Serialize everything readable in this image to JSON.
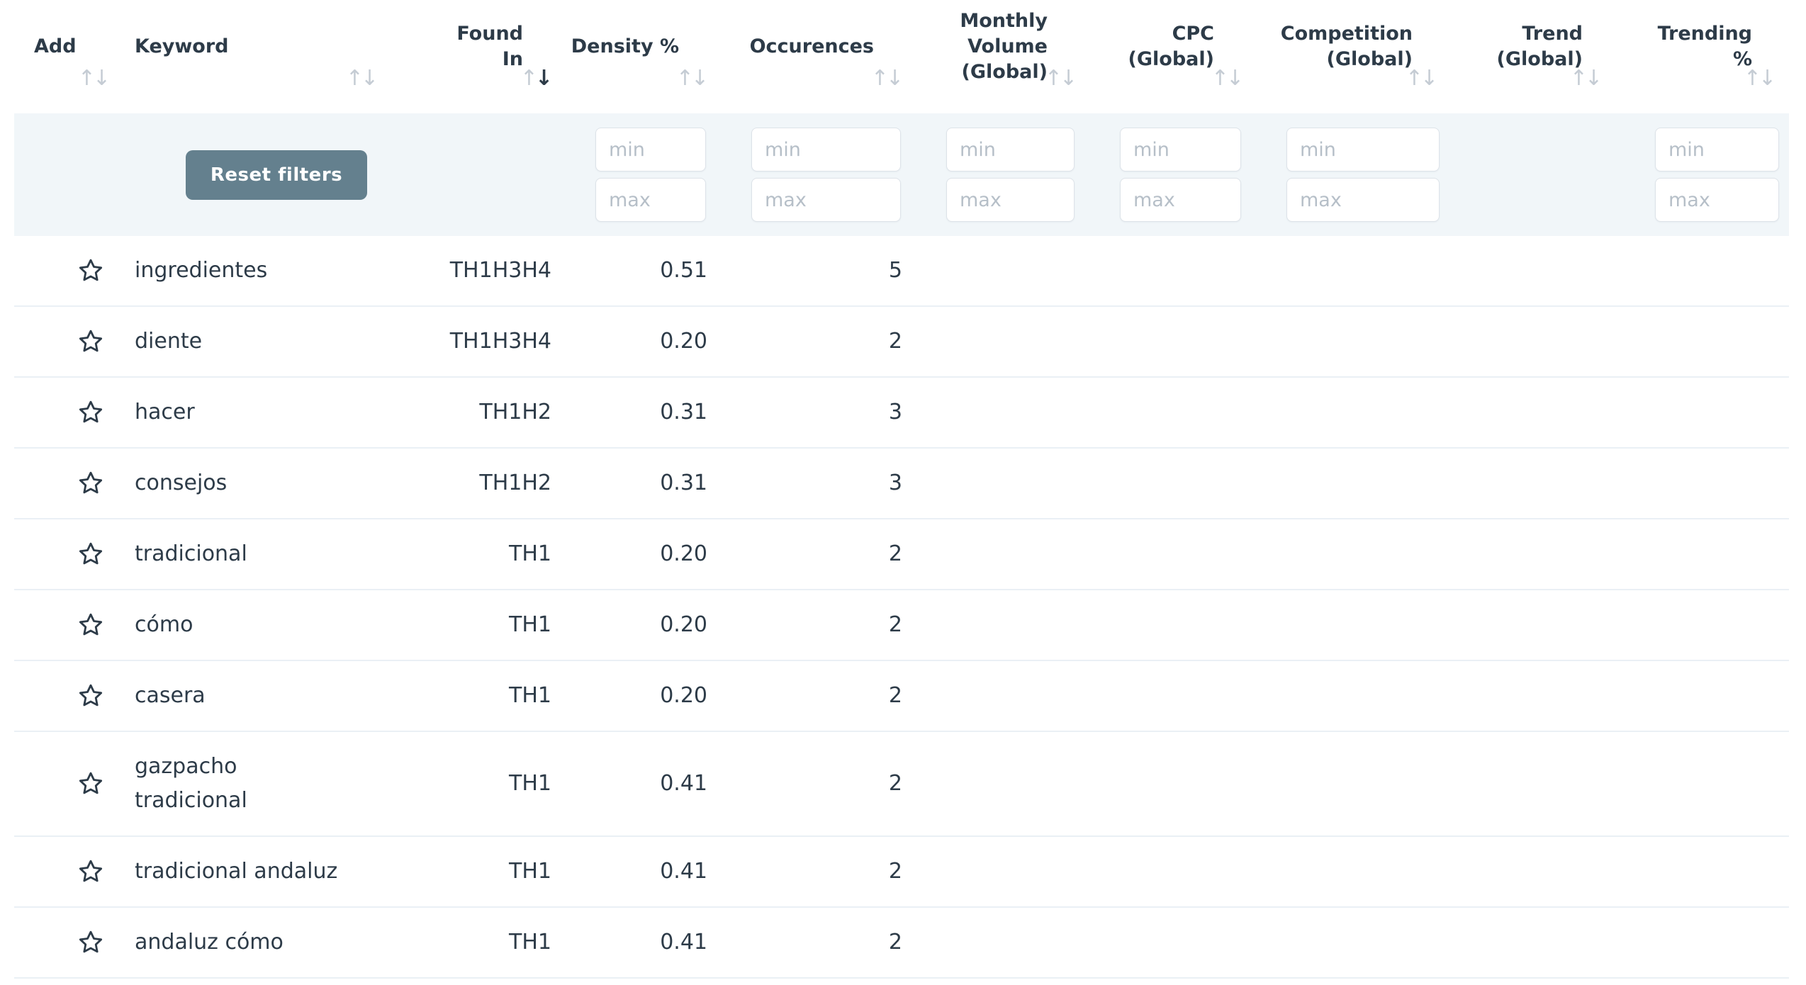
{
  "icons": {
    "sort_asc": "↑",
    "sort_desc": "↓",
    "favorite_star": "star-outline-icon"
  },
  "colors": {
    "text": "#2d3b48",
    "sort_arrow_inactive": "#c5ccd4",
    "sort_arrow_active": "#2d3b48",
    "filter_row_background": "#f1f6f9",
    "reset_button": "#64808e",
    "row_divider": "#eaf0f5"
  },
  "filters": {
    "reset_label": "Reset filters",
    "min_placeholder": "min",
    "max_placeholder": "max",
    "range_filter_columns": [
      "density",
      "occurences",
      "monthly_volume",
      "cpc",
      "competition",
      "trending"
    ]
  },
  "table": {
    "columns": [
      {
        "key": "add",
        "label": "Add",
        "sort": "none"
      },
      {
        "key": "keyword",
        "label": "Keyword",
        "sort": "none"
      },
      {
        "key": "found_in",
        "label": "Found In",
        "sort": "desc"
      },
      {
        "key": "density",
        "label": "Density %",
        "sort": "none"
      },
      {
        "key": "occurences",
        "label": "Occurences",
        "sort": "none"
      },
      {
        "key": "monthly_volume",
        "label": "Monthly\nVolume\n(Global)",
        "sort": "none"
      },
      {
        "key": "cpc",
        "label": "CPC\n(Global)",
        "sort": "none"
      },
      {
        "key": "competition",
        "label": "Competition\n(Global)",
        "sort": "none"
      },
      {
        "key": "trend",
        "label": "Trend\n(Global)",
        "sort": "none"
      },
      {
        "key": "trending",
        "label": "Trending\n%",
        "sort": "none"
      }
    ]
  },
  "rows": [
    {
      "keyword": "ingredientes",
      "found_in": "TH1H3H4",
      "density": "0.51",
      "occurences": "5",
      "monthly_volume": "",
      "cpc": "",
      "competition": "",
      "trend": "",
      "trending": ""
    },
    {
      "keyword": "diente",
      "found_in": "TH1H3H4",
      "density": "0.20",
      "occurences": "2",
      "monthly_volume": "",
      "cpc": "",
      "competition": "",
      "trend": "",
      "trending": ""
    },
    {
      "keyword": "hacer",
      "found_in": "TH1H2",
      "density": "0.31",
      "occurences": "3",
      "monthly_volume": "",
      "cpc": "",
      "competition": "",
      "trend": "",
      "trending": ""
    },
    {
      "keyword": "consejos",
      "found_in": "TH1H2",
      "density": "0.31",
      "occurences": "3",
      "monthly_volume": "",
      "cpc": "",
      "competition": "",
      "trend": "",
      "trending": ""
    },
    {
      "keyword": "tradicional",
      "found_in": "TH1",
      "density": "0.20",
      "occurences": "2",
      "monthly_volume": "",
      "cpc": "",
      "competition": "",
      "trend": "",
      "trending": ""
    },
    {
      "keyword": "cómo",
      "found_in": "TH1",
      "density": "0.20",
      "occurences": "2",
      "monthly_volume": "",
      "cpc": "",
      "competition": "",
      "trend": "",
      "trending": ""
    },
    {
      "keyword": "casera",
      "found_in": "TH1",
      "density": "0.20",
      "occurences": "2",
      "monthly_volume": "",
      "cpc": "",
      "competition": "",
      "trend": "",
      "trending": ""
    },
    {
      "keyword": "gazpacho\ntradicional",
      "found_in": "TH1",
      "density": "0.41",
      "occurences": "2",
      "monthly_volume": "",
      "cpc": "",
      "competition": "",
      "trend": "",
      "trending": ""
    },
    {
      "keyword": "tradicional andaluz",
      "found_in": "TH1",
      "density": "0.41",
      "occurences": "2",
      "monthly_volume": "",
      "cpc": "",
      "competition": "",
      "trend": "",
      "trending": ""
    },
    {
      "keyword": "andaluz cómo",
      "found_in": "TH1",
      "density": "0.41",
      "occurences": "2",
      "monthly_volume": "",
      "cpc": "",
      "competition": "",
      "trend": "",
      "trending": ""
    }
  ]
}
